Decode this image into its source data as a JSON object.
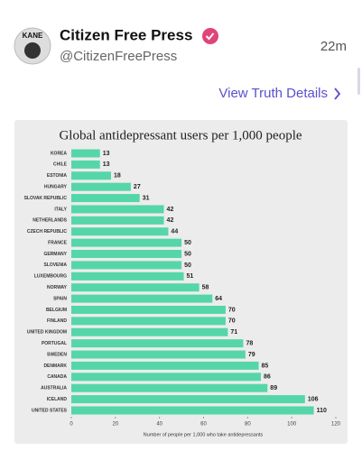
{
  "post": {
    "avatar_label": "KANE",
    "name": "Citizen Free Press",
    "handle": "@CitizenFreePress",
    "time": "22m",
    "details_link": "View Truth Details"
  },
  "chart_data": {
    "type": "bar",
    "orientation": "horizontal",
    "title": "Global antidepressant users per 1,000 people",
    "categories": [
      "KOREA",
      "CHILE",
      "ESTONIA",
      "HUNGARY",
      "SLOVAK REPUBLIC",
      "ITALY",
      "NETHERLANDS",
      "CZECH REPUBLIC",
      "FRANCE",
      "GERMANY",
      "SLOVENIA",
      "LUXEMBOURG",
      "NORWAY",
      "SPAIN",
      "BELGIUM",
      "FINLAND",
      "UNITED KINGDOM",
      "PORTUGAL",
      "SWEDEN",
      "DENMARK",
      "CANADA",
      "AUSTRALIA",
      "ICELAND",
      "UNITED STATES"
    ],
    "values": [
      13,
      13,
      18,
      27,
      31,
      42,
      42,
      44,
      50,
      50,
      50,
      51,
      58,
      64,
      70,
      70,
      71,
      78,
      79,
      85,
      86,
      89,
      106,
      110
    ],
    "color": "#55d6a9",
    "xlim": [
      0,
      120
    ],
    "xticks": [
      0,
      20,
      40,
      60,
      80,
      100,
      120
    ],
    "xlabel": "Number of people per 1,000 who take antidepressants"
  }
}
